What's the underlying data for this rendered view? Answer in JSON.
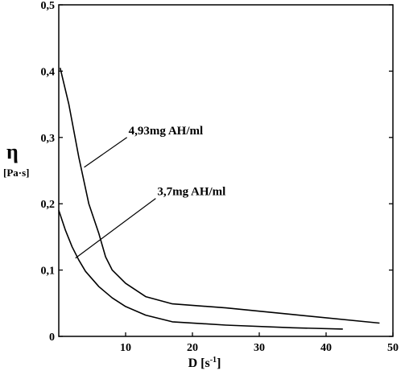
{
  "chart_data": {
    "type": "line",
    "title": "",
    "xlabel": {
      "main": "D [s",
      "sup": "-1",
      "end": "]"
    },
    "ylabel": {
      "symbol": "η",
      "unit": "[Pa·s]"
    },
    "xlim": [
      0,
      50
    ],
    "ylim": [
      0,
      0.5
    ],
    "x_ticks": [
      {
        "v": 10,
        "label": "10"
      },
      {
        "v": 20,
        "label": "20"
      },
      {
        "v": 30,
        "label": "30"
      },
      {
        "v": 40,
        "label": "40"
      },
      {
        "v": 50,
        "label": "50"
      }
    ],
    "y_ticks": [
      {
        "v": 0,
        "label": "0"
      },
      {
        "v": 0.1,
        "label": "0,1"
      },
      {
        "v": 0.2,
        "label": "0,2"
      },
      {
        "v": 0.3,
        "label": "0,3"
      },
      {
        "v": 0.4,
        "label": "0,4"
      },
      {
        "v": 0.5,
        "label": "0,5"
      }
    ],
    "grid": false,
    "series": [
      {
        "name": "4,93mg AH/ml",
        "x": [
          0.2,
          1.5,
          3,
          4.5,
          6,
          7,
          8,
          10,
          13,
          17,
          25,
          35,
          48
        ],
        "y": [
          0.405,
          0.35,
          0.27,
          0.2,
          0.155,
          0.12,
          0.1,
          0.08,
          0.06,
          0.049,
          0.043,
          0.033,
          0.02
        ]
      },
      {
        "name": "3,7mg AH/ml",
        "x": [
          0,
          1,
          2,
          3,
          4,
          6,
          8,
          10,
          13,
          17,
          25,
          35,
          42.5
        ],
        "y": [
          0.19,
          0.16,
          0.135,
          0.115,
          0.098,
          0.075,
          0.058,
          0.045,
          0.032,
          0.022,
          0.017,
          0.013,
          0.011
        ]
      }
    ],
    "annotations": [
      {
        "text": "4,93mg AH/ml",
        "from": [
          3.8,
          0.255
        ],
        "to": [
          10.2,
          0.3
        ]
      },
      {
        "text": "3,7mg AH/ml",
        "from": [
          2.5,
          0.118
        ],
        "to": [
          14.5,
          0.208
        ]
      }
    ]
  }
}
